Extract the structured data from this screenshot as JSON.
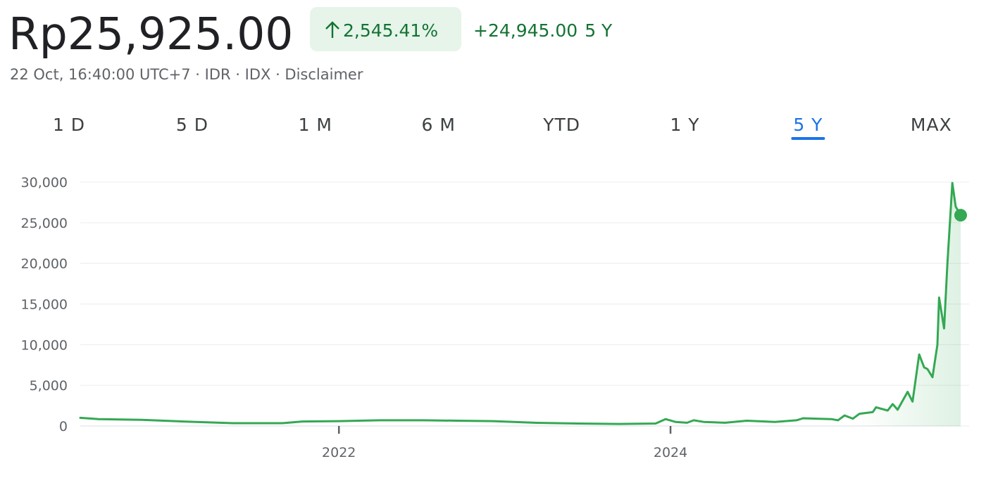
{
  "header": {
    "price": "Rp25,925.00",
    "change_percent": "2,545.41%",
    "change": "+24,945.00",
    "period": "5 Y",
    "info": "22 Oct, 16:40:00 UTC+7 · IDR · IDX · Disclaimer"
  },
  "tabs": {
    "labels": [
      "1 D",
      "5 D",
      "1 M",
      "6 M",
      "YTD",
      "1 Y",
      "5 Y",
      "MAX"
    ],
    "active": 6
  },
  "chart_data": {
    "type": "line",
    "color": "#34a853",
    "grid": true,
    "x": [
      2020.44,
      2020.55,
      2020.81,
      2021.06,
      2021.36,
      2021.66,
      2021.78,
      2022.0,
      2022.25,
      2022.51,
      2022.72,
      2022.93,
      2023.18,
      2023.44,
      2023.69,
      2023.91,
      2023.97,
      2024.03,
      2024.1,
      2024.14,
      2024.2,
      2024.33,
      2024.46,
      2024.63,
      2024.76,
      2024.8,
      2024.97,
      2025.01,
      2025.05,
      2025.1,
      2025.14,
      2025.22,
      2025.24,
      2025.31,
      2025.34,
      2025.37,
      2025.43,
      2025.46,
      2025.5,
      2025.53,
      2025.55,
      2025.58,
      2025.61,
      2025.62,
      2025.65,
      2025.67,
      2025.7,
      2025.72,
      2025.75
    ],
    "series": [
      {
        "values": [
          1000,
          850,
          750,
          550,
          350,
          350,
          550,
          600,
          700,
          700,
          650,
          600,
          400,
          300,
          250,
          300,
          850,
          500,
          400,
          700,
          500,
          400,
          650,
          500,
          700,
          950,
          850,
          700,
          1300,
          900,
          1500,
          1700,
          2300,
          1900,
          2700,
          2000,
          4200,
          3000,
          8800,
          7200,
          7000,
          6000,
          10000,
          15800,
          12000,
          20000,
          29900,
          27000,
          25925
        ]
      }
    ],
    "xlim": [
      2020.44,
      2025.75
    ],
    "xticks": [
      2022,
      2024
    ],
    "ylim": [
      0,
      30000
    ],
    "yticks": [
      0,
      {
        "value": 5000,
        "label": "5,000"
      },
      {
        "value": 10000,
        "label": "10,000"
      },
      {
        "value": 15000,
        "label": "15,000"
      },
      {
        "value": 20000,
        "label": "20,000"
      },
      {
        "value": 25000,
        "label": "25,000"
      },
      {
        "value": 30000,
        "label": "30,000"
      }
    ]
  }
}
